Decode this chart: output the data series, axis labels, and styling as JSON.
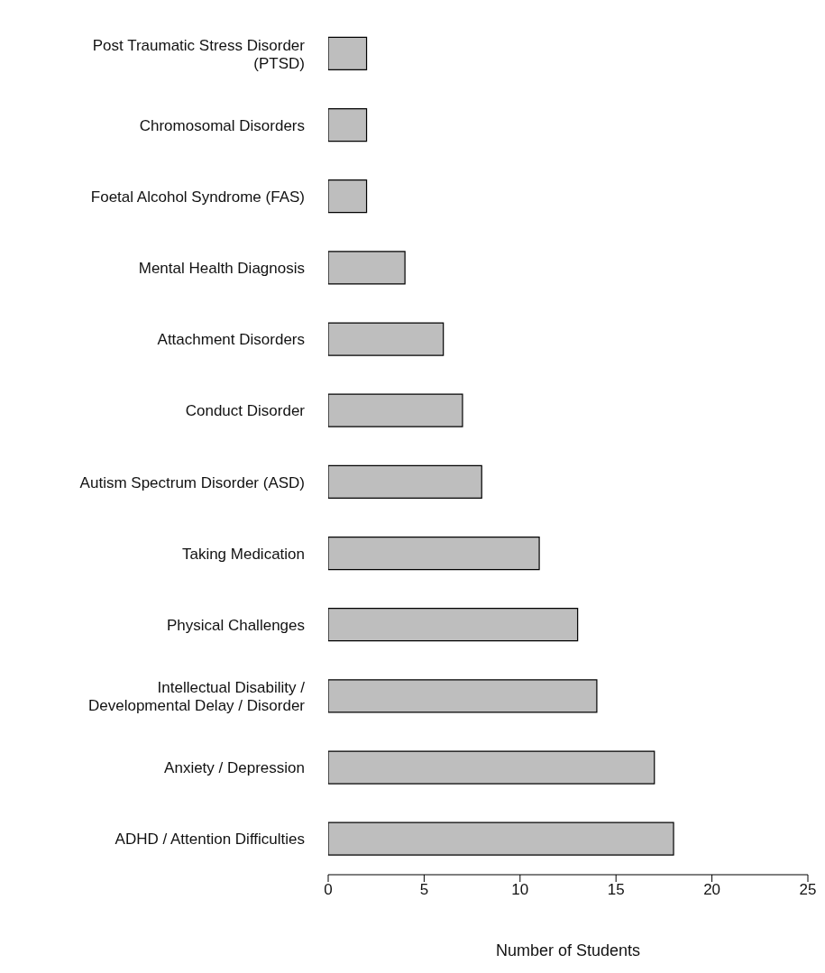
{
  "chart_data": {
    "type": "bar",
    "orientation": "horizontal",
    "xlabel": "Number of Students",
    "categories": [
      "Post Traumatic Stress Disorder (PTSD)",
      "Chromosomal Disorders",
      "Foetal Alcohol Syndrome (FAS)",
      "Mental Health Diagnosis",
      "Attachment Disorders",
      "Conduct Disorder",
      "Autism Spectrum Disorder (ASD)",
      "Taking Medication",
      "Physical Challenges",
      "Intellectual Disability / Developmental Delay / Disorder",
      "Anxiety / Depression",
      "ADHD / Attention Difficulties"
    ],
    "values": [
      2,
      2,
      2,
      4,
      6,
      7,
      8,
      11,
      13,
      14,
      17,
      18
    ],
    "color": "#bebebe",
    "xlim": [
      0,
      25
    ],
    "xticks": [
      0,
      5,
      10,
      15,
      20,
      25
    ],
    "grid": false,
    "legend": false
  }
}
